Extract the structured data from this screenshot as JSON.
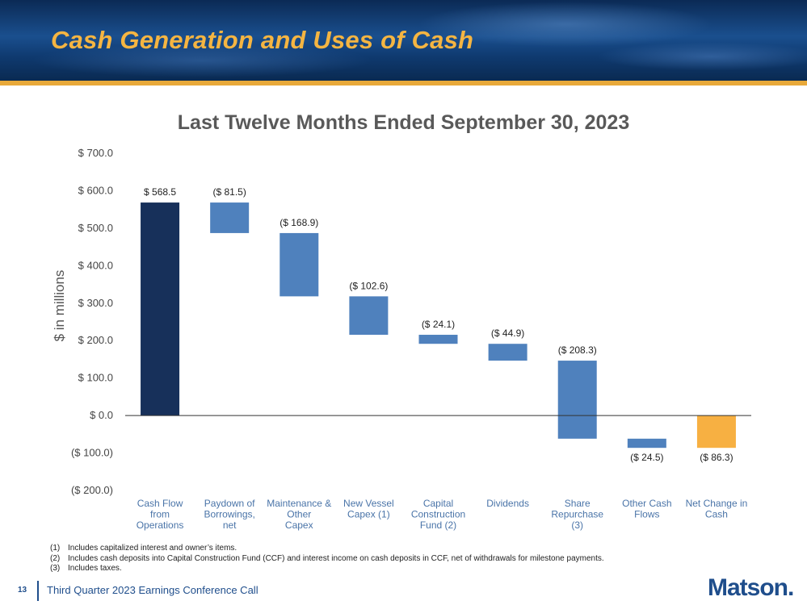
{
  "slide": {
    "title": "Cash Generation and Uses of Cash",
    "page_number": "13",
    "footer_text": "Third Quarter 2023 Earnings Conference Call",
    "logo_text": "Matson."
  },
  "footnotes": [
    {
      "num": "(1)",
      "text": "Includes capitalized interest and owner’s items."
    },
    {
      "num": "(2)",
      "text": "Includes cash deposits into Capital Construction Fund (CCF) and interest income on cash deposits in CCF, net of withdrawals for milestone payments."
    },
    {
      "num": "(3)",
      "text": "Includes taxes."
    }
  ],
  "colors": {
    "start_bar": "#17305a",
    "use_bar": "#4f81bd",
    "net_bar": "#f7b042",
    "axis_text": "#444444",
    "category_text": "#4a74a8"
  },
  "chart_data": {
    "type": "bar",
    "subtype": "waterfall",
    "title": "Last Twelve Months Ended September 30, 2023",
    "ylabel": "$ in millions",
    "xlabel": "",
    "ylim": [
      -200,
      700
    ],
    "yticks": [
      700,
      600,
      500,
      400,
      300,
      200,
      100,
      0,
      -100,
      -200
    ],
    "ytick_labels": [
      "$ 700.0",
      "$ 600.0",
      "$ 500.0",
      "$ 400.0",
      "$ 300.0",
      "$ 200.0",
      "$ 100.0",
      "$ 0.0",
      "($ 100.0)",
      "($ 200.0)"
    ],
    "categories": [
      [
        "Cash Flow",
        "from",
        "Operations"
      ],
      [
        "Paydown of",
        "Borrowings,",
        "net"
      ],
      [
        "Maintenance &",
        "Other",
        "Capex"
      ],
      [
        "New Vessel",
        "Capex (1)"
      ],
      [
        "Capital",
        "Construction",
        "Fund (2)"
      ],
      [
        "Dividends"
      ],
      [
        "Share",
        "Repurchase",
        "(3)"
      ],
      [
        "Other Cash",
        "Flows"
      ],
      [
        "Net Change in",
        "Cash"
      ]
    ],
    "values": [
      568.5,
      -81.5,
      -168.9,
      -102.6,
      -24.1,
      -44.9,
      -208.3,
      -24.5,
      -86.3
    ],
    "kinds": [
      "start",
      "change",
      "change",
      "change",
      "change",
      "change",
      "change",
      "change",
      "total"
    ],
    "data_labels": [
      "$ 568.5",
      "($ 81.5)",
      "($ 168.9)",
      "($ 102.6)",
      "($ 24.1)",
      "($ 44.9)",
      "($ 208.3)",
      "($ 24.5)",
      "($ 86.3)"
    ],
    "label_positions": [
      "above",
      "above",
      "above",
      "above",
      "above",
      "above",
      "above",
      "below",
      "below"
    ],
    "grid": false,
    "legend": "none"
  }
}
